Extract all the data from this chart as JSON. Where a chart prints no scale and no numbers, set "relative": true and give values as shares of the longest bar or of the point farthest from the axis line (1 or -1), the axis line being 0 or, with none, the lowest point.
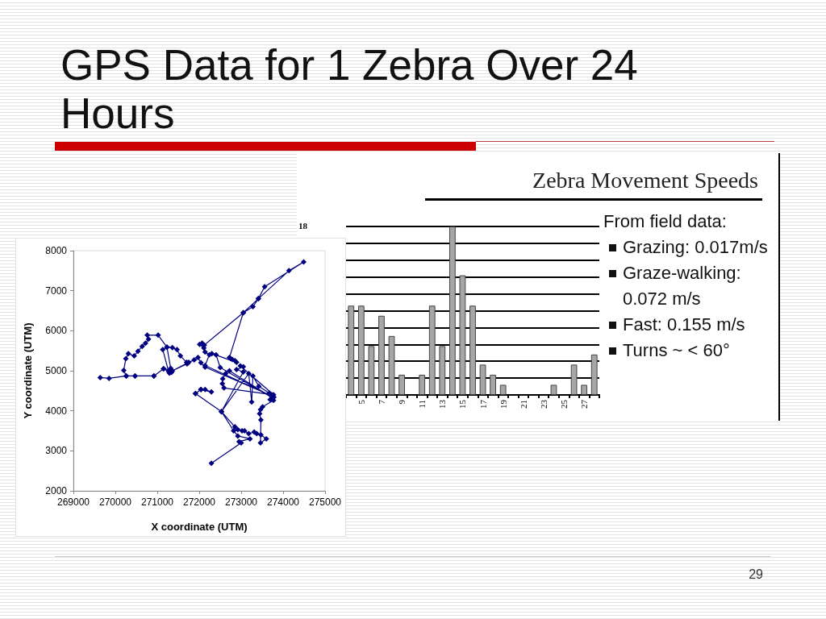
{
  "chart_data": [
    {
      "type": "line",
      "title": "GPS Data for 1 Zebra Over 24 Hours",
      "xlabel": "X coordinate (UTM)",
      "ylabel": "Y coordinate (UTM)",
      "xlim": [
        269000,
        275000
      ],
      "xticks": [
        269000,
        270000,
        271000,
        272000,
        273000,
        274000,
        275000
      ],
      "ylim": [
        2000,
        8000
      ],
      "yticks": [
        2000,
        3000,
        4000,
        5000,
        6000,
        7000,
        8000
      ],
      "marker": "diamond",
      "line_style": "solid",
      "annotations": [
        "29"
      ],
      "x": [
        269640,
        269850,
        270260,
        270470,
        270920,
        271150,
        271270,
        271130,
        271230,
        271020,
        270760,
        270790,
        270720,
        270640,
        270540,
        270450,
        270310,
        270250,
        270200,
        270260,
        270470,
        270920,
        271150,
        271300,
        271340,
        271290,
        271320,
        271230,
        271360,
        271470,
        271550,
        271700,
        271710,
        271360,
        271750,
        271880,
        271970,
        272040,
        272140,
        273710,
        272140,
        272240,
        272140,
        272110,
        272010,
        272070,
        272120,
        273050,
        273280,
        273410,
        273560,
        274490,
        274140,
        273410,
        273050,
        272720,
        272750,
        272790,
        272850,
        272890,
        272300,
        272400,
        272500,
        273750,
        272720,
        272630,
        272560,
        272550,
        272590,
        273770,
        272980,
        273050,
        272890,
        273050,
        272530,
        273180,
        273250,
        273280,
        273420,
        273670,
        273730,
        273780,
        273690,
        273770,
        273510,
        273460,
        273440,
        273470,
        273460,
        273600,
        273470,
        273370,
        273310,
        273180,
        273080,
        273020,
        272920,
        272850,
        272530,
        271910,
        272040,
        272140,
        272290,
        272040,
        271910,
        272530,
        272820,
        272920,
        273210,
        272950,
        273000,
        272290
      ],
      "series": [
        {
          "color": "#000080",
          "values": [
            4830,
            4810,
            4870,
            4870,
            4870,
            5050,
            4980,
            5530,
            5590,
            5890,
            5890,
            5790,
            5690,
            5610,
            5490,
            5370,
            5430,
            5300,
            5010,
            4870,
            4870,
            4870,
            5050,
            5020,
            4960,
            4940,
            5060,
            5590,
            5580,
            5530,
            5370,
            5210,
            5170,
            5000,
            5210,
            5270,
            5330,
            5200,
            5090,
            4380,
            5130,
            5400,
            5470,
            5570,
            5660,
            5690,
            5640,
            6450,
            6600,
            6800,
            7100,
            7720,
            7500,
            6800,
            6450,
            5330,
            5300,
            5280,
            5250,
            5210,
            5430,
            5400,
            5080,
            4320,
            5000,
            4930,
            4800,
            4680,
            4570,
            4400,
            5120,
            5100,
            5030,
            4970,
            3980,
            4930,
            4220,
            4870,
            4610,
            4440,
            4400,
            4340,
            4280,
            4260,
            4100,
            4030,
            3930,
            3770,
            3200,
            3300,
            3400,
            3430,
            3470,
            3430,
            3500,
            3500,
            3530,
            3600,
            3980,
            4430,
            4530,
            4530,
            4470,
            4530,
            4430,
            3980,
            3500,
            3370,
            3300,
            3230,
            3200,
            2690
          ]
        }
      ]
    },
    {
      "type": "bar",
      "title": "Zebra Movement Speeds",
      "relative": true,
      "grid": "y",
      "annotations": [
        "18"
      ],
      "categories": [
        null,
        "5",
        null,
        "7",
        null,
        "9",
        null,
        "11",
        null,
        "13",
        null,
        "15",
        null,
        "17",
        null,
        "19",
        null,
        "21",
        null,
        "23",
        null,
        "25",
        null,
        "27",
        null
      ],
      "values": [
        0.53,
        0.53,
        0.29,
        0.47,
        0.35,
        0.12,
        0,
        0.12,
        0.53,
        0.29,
        1,
        0.71,
        0.53,
        0.18,
        0.12,
        0.06,
        0,
        0,
        0,
        0,
        0.06,
        0,
        0.18,
        0.06,
        0.24
      ],
      "color": "#a6a6a6"
    },
    {
      "type": "other",
      "title": "From field data:",
      "annotations": [
        "Grazing: 0.017m/s",
        "Graze-walking: 0.072 m/s",
        "Fast: 0.155 m/s",
        "Turns ~ < 60°"
      ]
    }
  ]
}
